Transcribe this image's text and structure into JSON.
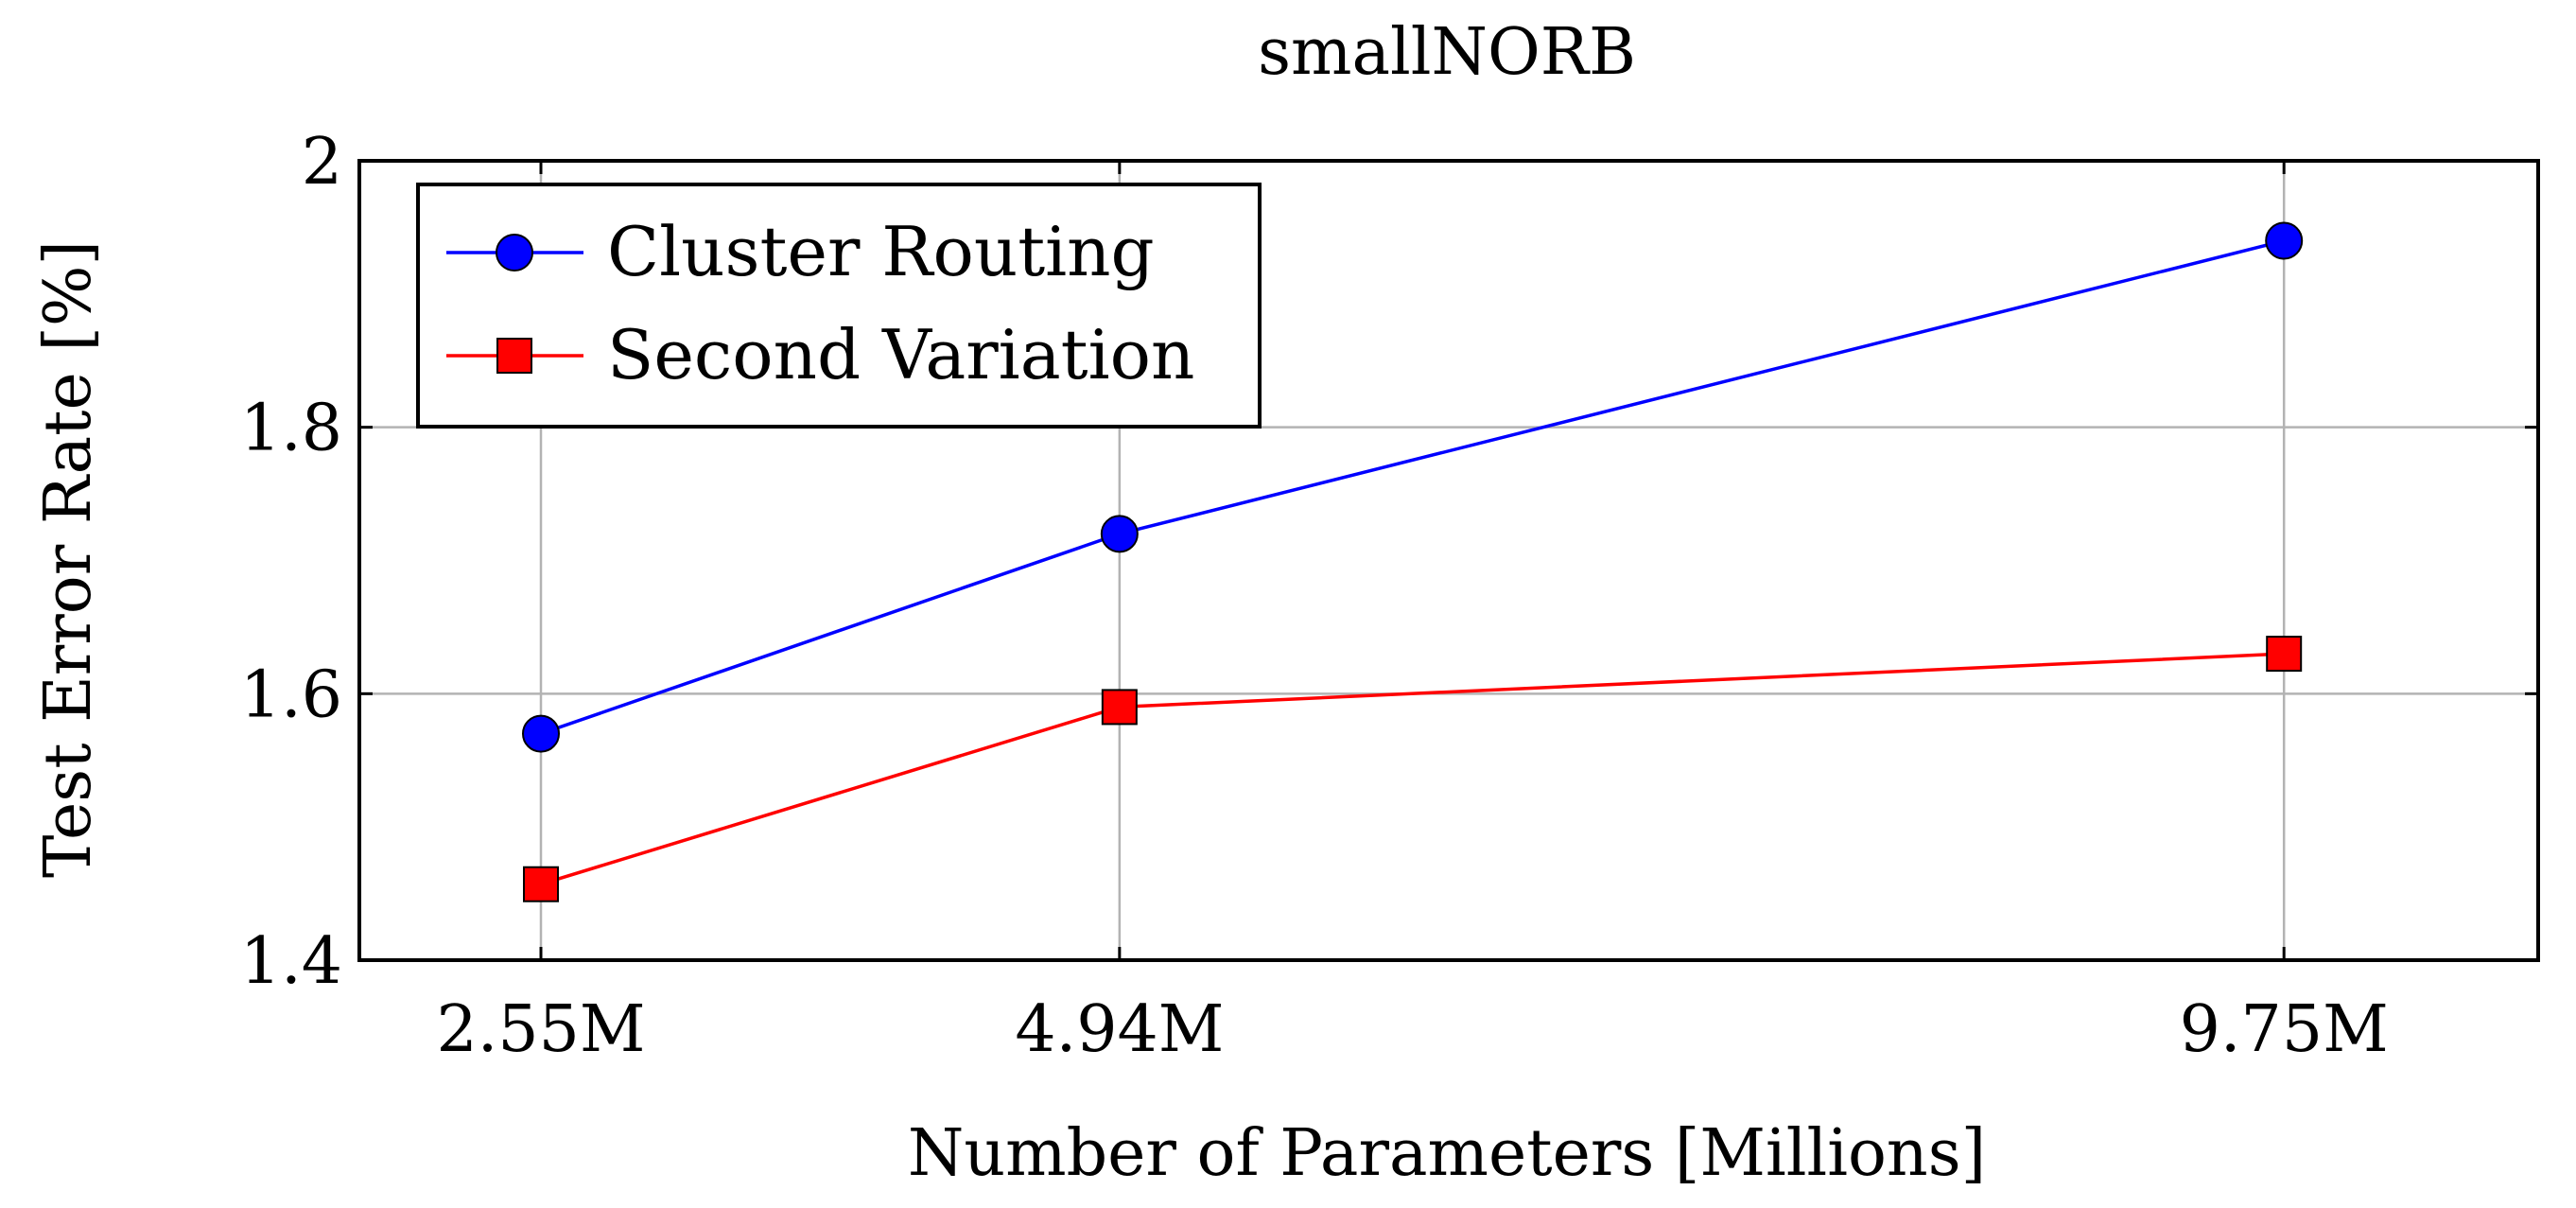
{
  "chart_data": {
    "type": "line",
    "title": "smallNORB",
    "xlabel": "Number of Parameters [Millions]",
    "ylabel": "Test Error Rate [%]",
    "x": [
      2.55,
      4.94,
      9.75
    ],
    "x_tick_labels": [
      "2.55M",
      "4.94M",
      "9.75M"
    ],
    "xlim": [
      1.8,
      10.8
    ],
    "ylim": [
      1.4,
      2.0
    ],
    "y_ticks": [
      1.4,
      1.6,
      1.8,
      2.0
    ],
    "y_tick_labels": [
      "1.4",
      "1.6",
      "1.8",
      "2"
    ],
    "grid": true,
    "legend_position": "top-left",
    "series": [
      {
        "name": "Cluster Routing",
        "values": [
          1.57,
          1.72,
          1.94
        ],
        "color": "#0000ff",
        "marker": "circle"
      },
      {
        "name": "Second Variation",
        "values": [
          1.457,
          1.59,
          1.63
        ],
        "color": "#ff0000",
        "marker": "square"
      }
    ]
  }
}
